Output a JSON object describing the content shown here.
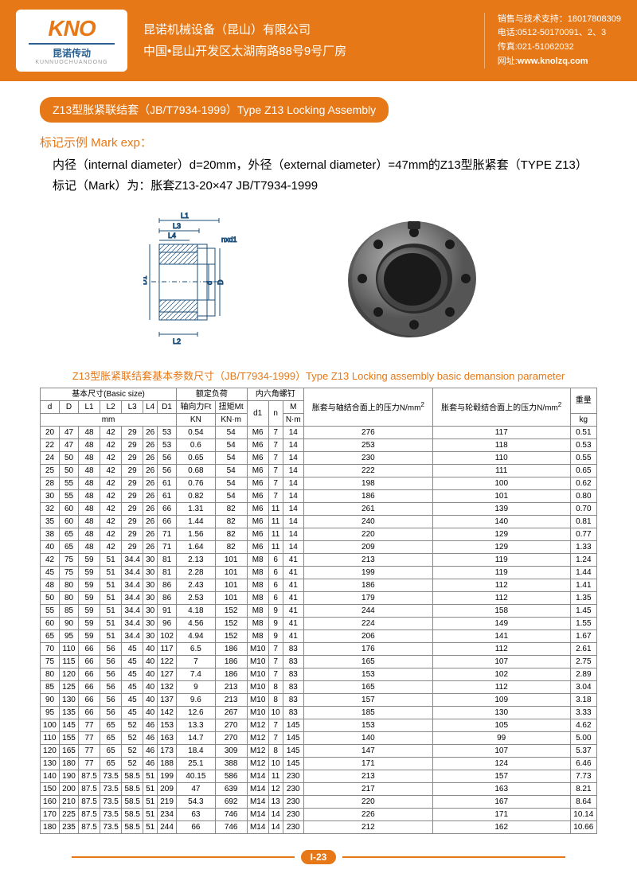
{
  "header": {
    "logo_main": "KNO",
    "logo_sub": "昆诺传动",
    "logo_pinyin": "KUNNUOCHUANDONG",
    "company": "昆诺机械设备（昆山）有限公司",
    "address": "中国•昆山开发区太湖南路88号9号厂房",
    "contact1_label": "销售与技术支持：",
    "contact1_value": "18017808309",
    "contact2_label": "电话:",
    "contact2_value": "0512-50170091、2、3",
    "contact3_label": "传真:",
    "contact3_value": "021-51062032",
    "contact4_label": "网址:",
    "contact4_value": "www.knolzq.com"
  },
  "title": "Z13型胀紧联结套（JB/T7934-1999）Type Z13 Locking Assembly",
  "mark": {
    "title": "标记示例 Mark exp：",
    "line1": "内径（internal diameter）d=20mm，外径（external diameter）=47mm的Z13型胀紧套（TYPE Z13）",
    "line2": "标记（Mark）为：胀套Z13-20×47  JB/T7934-1999"
  },
  "diagram_labels": {
    "L1": "L1",
    "L2": "L2",
    "L3": "L3",
    "L4": "L4",
    "D1": "D1",
    "D": "D",
    "d": "d",
    "nxd1": "nxd1"
  },
  "table_caption": "Z13型胀紧联结套基本参数尺寸（JB/T7934-1999）Type Z13 Locking assembly basic demansion parameter",
  "table": {
    "basic_size_header": "基本尺寸(Basic size)",
    "load_header": "额定负荷",
    "screw_header": "内六角螺钉",
    "pressure1_header": "胀套与轴结合面上的压力N/mm",
    "pressure2_header": "胀套与轮毂结合面上的压力N/mm",
    "weight_header": "重量",
    "cols": [
      "d",
      "D",
      "L1",
      "L2",
      "L3",
      "L4",
      "D1"
    ],
    "mm": "mm",
    "ft_header": "轴向力Ft",
    "ft_unit": "KN",
    "mt_header": "扭矩Mt",
    "mt_unit": "KN·m",
    "d1": "d1",
    "n": "n",
    "m_header": "M",
    "m_unit": "N·m",
    "kg": "kg",
    "rows": [
      [
        "20",
        "47",
        "48",
        "42",
        "29",
        "26",
        "53",
        "0.54",
        "54",
        "M6",
        "7",
        "14",
        "276",
        "117",
        "0.51"
      ],
      [
        "22",
        "47",
        "48",
        "42",
        "29",
        "26",
        "53",
        "0.6",
        "54",
        "M6",
        "7",
        "14",
        "253",
        "118",
        "0.53"
      ],
      [
        "24",
        "50",
        "48",
        "42",
        "29",
        "26",
        "56",
        "0.65",
        "54",
        "M6",
        "7",
        "14",
        "230",
        "110",
        "0.55"
      ],
      [
        "25",
        "50",
        "48",
        "42",
        "29",
        "26",
        "56",
        "0.68",
        "54",
        "M6",
        "7",
        "14",
        "222",
        "111",
        "0.65"
      ],
      [
        "28",
        "55",
        "48",
        "42",
        "29",
        "26",
        "61",
        "0.76",
        "54",
        "M6",
        "7",
        "14",
        "198",
        "100",
        "0.62"
      ],
      [
        "30",
        "55",
        "48",
        "42",
        "29",
        "26",
        "61",
        "0.82",
        "54",
        "M6",
        "7",
        "14",
        "186",
        "101",
        "0.80"
      ],
      [
        "32",
        "60",
        "48",
        "42",
        "29",
        "26",
        "66",
        "1.31",
        "82",
        "M6",
        "11",
        "14",
        "261",
        "139",
        "0.70"
      ],
      [
        "35",
        "60",
        "48",
        "42",
        "29",
        "26",
        "66",
        "1.44",
        "82",
        "M6",
        "11",
        "14",
        "240",
        "140",
        "0.81"
      ],
      [
        "38",
        "65",
        "48",
        "42",
        "29",
        "26",
        "71",
        "1.56",
        "82",
        "M6",
        "11",
        "14",
        "220",
        "129",
        "0.77"
      ],
      [
        "40",
        "65",
        "48",
        "42",
        "29",
        "26",
        "71",
        "1.64",
        "82",
        "M6",
        "11",
        "14",
        "209",
        "129",
        "1.33"
      ],
      [
        "42",
        "75",
        "59",
        "51",
        "34.4",
        "30",
        "81",
        "2.13",
        "101",
        "M8",
        "6",
        "41",
        "213",
        "119",
        "1.24"
      ],
      [
        "45",
        "75",
        "59",
        "51",
        "34.4",
        "30",
        "81",
        "2.28",
        "101",
        "M8",
        "6",
        "41",
        "199",
        "119",
        "1.44"
      ],
      [
        "48",
        "80",
        "59",
        "51",
        "34.4",
        "30",
        "86",
        "2.43",
        "101",
        "M8",
        "6",
        "41",
        "186",
        "112",
        "1.41"
      ],
      [
        "50",
        "80",
        "59",
        "51",
        "34.4",
        "30",
        "86",
        "2.53",
        "101",
        "M8",
        "6",
        "41",
        "179",
        "112",
        "1.35"
      ],
      [
        "55",
        "85",
        "59",
        "51",
        "34.4",
        "30",
        "91",
        "4.18",
        "152",
        "M8",
        "9",
        "41",
        "244",
        "158",
        "1.45"
      ],
      [
        "60",
        "90",
        "59",
        "51",
        "34.4",
        "30",
        "96",
        "4.56",
        "152",
        "M8",
        "9",
        "41",
        "224",
        "149",
        "1.55"
      ],
      [
        "65",
        "95",
        "59",
        "51",
        "34.4",
        "30",
        "102",
        "4.94",
        "152",
        "M8",
        "9",
        "41",
        "206",
        "141",
        "1.67"
      ],
      [
        "70",
        "110",
        "66",
        "56",
        "45",
        "40",
        "117",
        "6.5",
        "186",
        "M10",
        "7",
        "83",
        "176",
        "112",
        "2.61"
      ],
      [
        "75",
        "115",
        "66",
        "56",
        "45",
        "40",
        "122",
        "7",
        "186",
        "M10",
        "7",
        "83",
        "165",
        "107",
        "2.75"
      ],
      [
        "80",
        "120",
        "66",
        "56",
        "45",
        "40",
        "127",
        "7.4",
        "186",
        "M10",
        "7",
        "83",
        "153",
        "102",
        "2.89"
      ],
      [
        "85",
        "125",
        "66",
        "56",
        "45",
        "40",
        "132",
        "9",
        "213",
        "M10",
        "8",
        "83",
        "165",
        "112",
        "3.04"
      ],
      [
        "90",
        "130",
        "66",
        "56",
        "45",
        "40",
        "137",
        "9.6",
        "213",
        "M10",
        "8",
        "83",
        "157",
        "109",
        "3.18"
      ],
      [
        "95",
        "135",
        "66",
        "56",
        "45",
        "40",
        "142",
        "12.6",
        "267",
        "M10",
        "10",
        "83",
        "185",
        "130",
        "3.33"
      ],
      [
        "100",
        "145",
        "77",
        "65",
        "52",
        "46",
        "153",
        "13.3",
        "270",
        "M12",
        "7",
        "145",
        "153",
        "105",
        "4.62"
      ],
      [
        "110",
        "155",
        "77",
        "65",
        "52",
        "46",
        "163",
        "14.7",
        "270",
        "M12",
        "7",
        "145",
        "140",
        "99",
        "5.00"
      ],
      [
        "120",
        "165",
        "77",
        "65",
        "52",
        "46",
        "173",
        "18.4",
        "309",
        "M12",
        "8",
        "145",
        "147",
        "107",
        "5.37"
      ],
      [
        "130",
        "180",
        "77",
        "65",
        "52",
        "46",
        "188",
        "25.1",
        "388",
        "M12",
        "10",
        "145",
        "171",
        "124",
        "6.46"
      ],
      [
        "140",
        "190",
        "87.5",
        "73.5",
        "58.5",
        "51",
        "199",
        "40.15",
        "586",
        "M14",
        "11",
        "230",
        "213",
        "157",
        "7.73"
      ],
      [
        "150",
        "200",
        "87.5",
        "73.5",
        "58.5",
        "51",
        "209",
        "47",
        "639",
        "M14",
        "12",
        "230",
        "217",
        "163",
        "8.21"
      ],
      [
        "160",
        "210",
        "87.5",
        "73.5",
        "58.5",
        "51",
        "219",
        "54.3",
        "692",
        "M14",
        "13",
        "230",
        "220",
        "167",
        "8.64"
      ],
      [
        "170",
        "225",
        "87.5",
        "73.5",
        "58.5",
        "51",
        "234",
        "63",
        "746",
        "M14",
        "14",
        "230",
        "226",
        "171",
        "10.14"
      ],
      [
        "180",
        "235",
        "87.5",
        "73.5",
        "58.5",
        "51",
        "244",
        "66",
        "746",
        "M14",
        "14",
        "230",
        "212",
        "162",
        "10.66"
      ]
    ]
  },
  "footer": {
    "page": "I-23"
  }
}
